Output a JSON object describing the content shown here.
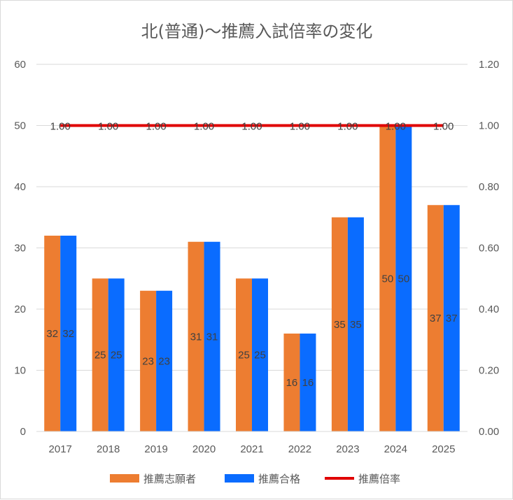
{
  "chart_data": {
    "type": "bar",
    "title": "北(普通)〜推薦入試倍率の変化",
    "categories": [
      "2017",
      "2018",
      "2019",
      "2020",
      "2021",
      "2022",
      "2023",
      "2024",
      "2025"
    ],
    "series": [
      {
        "name": "推薦志願者",
        "kind": "bar",
        "axis": "left",
        "color": "#ed7d31",
        "values": [
          32,
          25,
          23,
          31,
          25,
          16,
          35,
          50,
          37
        ],
        "labels": [
          "32",
          "25",
          "23",
          "31",
          "25",
          "16",
          "35",
          "50",
          "37"
        ]
      },
      {
        "name": "推薦合格",
        "kind": "bar",
        "axis": "left",
        "color": "#0a6cff",
        "values": [
          32,
          25,
          23,
          31,
          25,
          16,
          35,
          50,
          37
        ],
        "labels": [
          "32",
          "25",
          "23",
          "31",
          "25",
          "16",
          "35",
          "50",
          "37"
        ]
      },
      {
        "name": "推薦倍率",
        "kind": "line",
        "axis": "right",
        "color": "#e00000",
        "values": [
          1.0,
          1.0,
          1.0,
          1.0,
          1.0,
          1.0,
          1.0,
          1.0,
          1.0
        ],
        "labels": [
          "1.00",
          "1.00",
          "1.00",
          "1.00",
          "1.00",
          "1.00",
          "1.00",
          "1.00",
          "1.00"
        ]
      }
    ],
    "y_left": {
      "min": 0,
      "max": 60,
      "ticks": [
        "0",
        "10",
        "20",
        "30",
        "40",
        "50",
        "60"
      ]
    },
    "y_right": {
      "min": 0,
      "max": 1.2,
      "ticks": [
        "0.00",
        "0.20",
        "0.40",
        "0.60",
        "0.80",
        "1.00",
        "1.20"
      ]
    },
    "grid": true,
    "legend_position": "bottom"
  }
}
